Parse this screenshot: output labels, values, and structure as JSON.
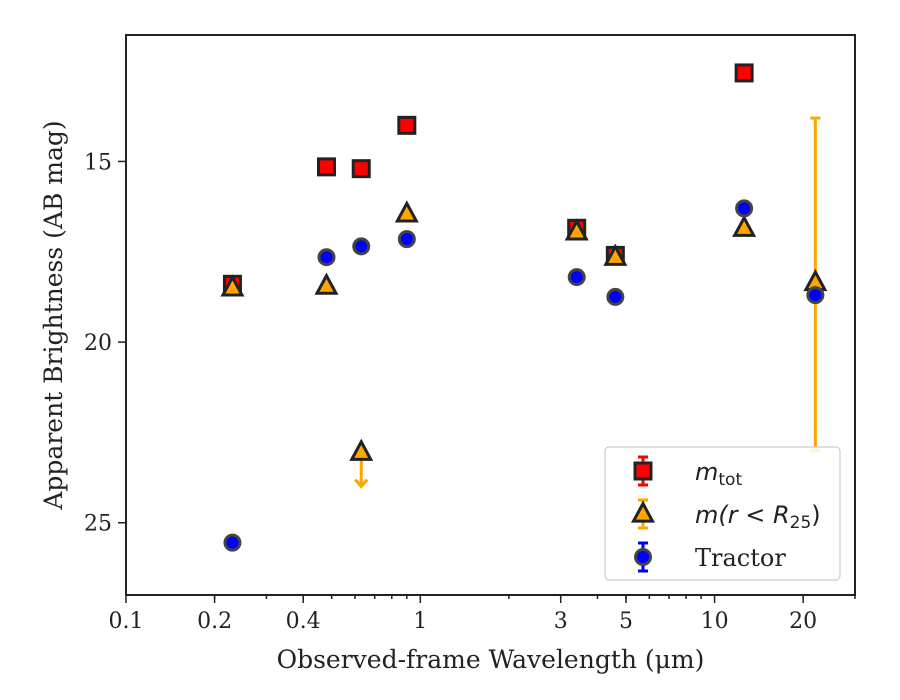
{
  "chart_data": {
    "type": "scatter",
    "xlabel": "Observed-frame Wavelength (μm)",
    "ylabel": "Apparent Brightness (AB mag)",
    "xscale": "log",
    "xlim": [
      0.1,
      30
    ],
    "ylim": [
      27,
      11.5
    ],
    "y_inverted": true,
    "x_ticks": [
      {
        "v": 0.1,
        "label": "0.1"
      },
      {
        "v": 0.2,
        "label": "0.2"
      },
      {
        "v": 0.4,
        "label": "0.4"
      },
      {
        "v": 1,
        "label": "1"
      },
      {
        "v": 3,
        "label": "3"
      },
      {
        "v": 5,
        "label": "5"
      },
      {
        "v": 10,
        "label": "10"
      },
      {
        "v": 20,
        "label": "20"
      }
    ],
    "y_ticks": [
      {
        "v": 15,
        "label": "15"
      },
      {
        "v": 20,
        "label": "20"
      },
      {
        "v": 25,
        "label": "25"
      }
    ],
    "legend": {
      "position": "lower-right",
      "entries": [
        {
          "series": "m_tot",
          "label_main": "m",
          "label_sub": "tot"
        },
        {
          "series": "m_r25",
          "label_main": "m(r < R",
          "label_sub": "25",
          "label_end": ")"
        },
        {
          "series": "tractor",
          "label_main": "Tractor"
        }
      ]
    },
    "series": [
      {
        "name": "m_tot",
        "marker": "square",
        "color": "#ff0000",
        "edge": "#222222",
        "errcolor": "#ff0000",
        "points": [
          {
            "x": 0.23,
            "y": 18.4
          },
          {
            "x": 0.48,
            "y": 15.15
          },
          {
            "x": 0.63,
            "y": 15.2
          },
          {
            "x": 0.9,
            "y": 14.0
          },
          {
            "x": 3.4,
            "y": 16.85
          },
          {
            "x": 4.6,
            "y": 17.6
          },
          {
            "x": 12.6,
            "y": 12.55
          }
        ]
      },
      {
        "name": "m(r<R25)",
        "marker": "triangle",
        "color": "#ffa500",
        "edge": "#222222",
        "errcolor": "#ffa500",
        "points": [
          {
            "x": 0.23,
            "y": 18.5
          },
          {
            "x": 0.48,
            "y": 18.45
          },
          {
            "x": 0.63,
            "y": 23.05,
            "upper_limit": true,
            "arrow_to": 24.0
          },
          {
            "x": 0.9,
            "y": 16.45
          },
          {
            "x": 3.4,
            "y": 16.95
          },
          {
            "x": 4.6,
            "y": 17.65
          },
          {
            "x": 12.6,
            "y": 16.85
          },
          {
            "x": 22,
            "y": 18.35,
            "err_low": 13.8,
            "err_high": 23.0
          }
        ]
      },
      {
        "name": "Tractor",
        "marker": "circle",
        "color": "#0000ff",
        "edge": "#444444",
        "errcolor": "#0000ff",
        "points": [
          {
            "x": 0.23,
            "y": 25.55
          },
          {
            "x": 0.48,
            "y": 17.65
          },
          {
            "x": 0.63,
            "y": 17.35
          },
          {
            "x": 0.9,
            "y": 17.15
          },
          {
            "x": 3.4,
            "y": 18.2
          },
          {
            "x": 4.6,
            "y": 18.75
          },
          {
            "x": 12.6,
            "y": 16.3
          },
          {
            "x": 22,
            "y": 18.7
          }
        ]
      }
    ]
  }
}
